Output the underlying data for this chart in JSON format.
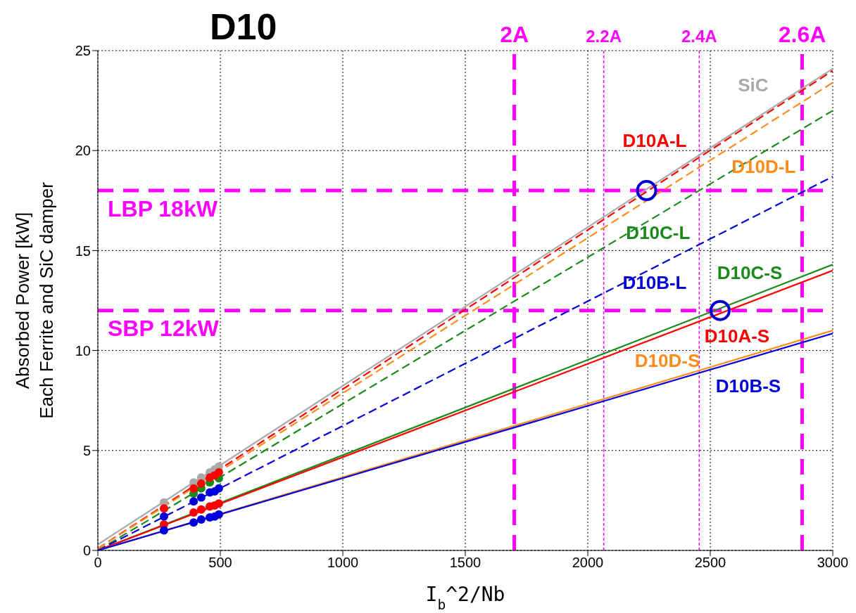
{
  "chart_data": {
    "type": "line",
    "title": "D10",
    "xlabel": "I$_{b}$^2/Nb",
    "ylabel": "Absorbed Power [kW]\nEach Ferrite and SiC damper",
    "xlim": [
      0,
      3000
    ],
    "xticks": [
      0,
      500,
      1000,
      1500,
      2000,
      2500,
      3000
    ],
    "ylim": [
      0,
      25
    ],
    "yticks": [
      0,
      5,
      10,
      15,
      20,
      25
    ],
    "grid": true,
    "series": [
      {
        "name": "SiC",
        "color": "#aaaaaa",
        "line_style": "solid",
        "x": [
          0,
          3000
        ],
        "values": [
          0.3,
          24.1
        ]
      },
      {
        "name": "D10A-L",
        "color": "#ff0000",
        "line_style": "dashed",
        "x": [
          0,
          3000
        ],
        "values": [
          0.1,
          24.0
        ]
      },
      {
        "name": "D10D-L",
        "color": "#ff8c1a",
        "line_style": "dashed",
        "x": [
          0,
          3000
        ],
        "values": [
          0.1,
          23.4
        ]
      },
      {
        "name": "D10C-L",
        "color": "#1a8a1a",
        "line_style": "dashed",
        "x": [
          0,
          3000
        ],
        "values": [
          0.0,
          22.0
        ]
      },
      {
        "name": "D10B-L",
        "color": "#0000dd",
        "line_style": "dashed",
        "x": [
          0,
          3000
        ],
        "values": [
          0.0,
          18.7
        ]
      },
      {
        "name": "D10C-S",
        "color": "#1a8a1a",
        "line_style": "solid",
        "x": [
          0,
          3000
        ],
        "values": [
          0.0,
          14.3
        ]
      },
      {
        "name": "D10A-S",
        "color": "#ff0000",
        "line_style": "solid",
        "x": [
          0,
          3000
        ],
        "values": [
          0.0,
          14.0
        ]
      },
      {
        "name": "D10D-S",
        "color": "#ff8c1a",
        "line_style": "solid",
        "x": [
          0,
          3000
        ],
        "values": [
          0.0,
          11.0
        ]
      },
      {
        "name": "D10B-S",
        "color": "#0000dd",
        "line_style": "solid",
        "x": [
          0,
          3000
        ],
        "values": [
          0.0,
          10.85
        ]
      },
      {
        "type": "scatter",
        "marker": "circle",
        "color": "#aaaaaa",
        "x": [
          270,
          391,
          422,
          457,
          477,
          494
        ],
        "values": [
          2.4,
          3.4,
          3.65,
          3.9,
          4.05,
          4.2
        ]
      },
      {
        "type": "scatter",
        "marker": "circle",
        "color": "#1a8a1a",
        "x": [
          391,
          422,
          457,
          494
        ],
        "values": [
          2.85,
          3.1,
          3.4,
          3.6
        ]
      },
      {
        "type": "scatter",
        "marker": "circle",
        "color": "#ff0000",
        "x": [
          270,
          391,
          422,
          457,
          477,
          494
        ],
        "values": [
          2.1,
          3.1,
          3.35,
          3.65,
          3.75,
          3.9
        ]
      },
      {
        "type": "scatter",
        "marker": "circle",
        "color": "#0000dd",
        "x": [
          270,
          391,
          422,
          457,
          477,
          494
        ],
        "values": [
          1.7,
          2.45,
          2.65,
          2.9,
          2.95,
          3.1
        ]
      },
      {
        "type": "scatter",
        "marker": "circle",
        "color": "#ff0000",
        "x": [
          270,
          391,
          422,
          457,
          477,
          494
        ],
        "values": [
          1.3,
          1.9,
          2.05,
          2.2,
          2.25,
          2.35
        ]
      },
      {
        "type": "scatter",
        "marker": "circle",
        "color": "#0000dd",
        "x": [
          270,
          391,
          422,
          457,
          477,
          494
        ],
        "values": [
          1.0,
          1.4,
          1.55,
          1.65,
          1.7,
          1.8
        ]
      },
      {
        "type": "scatter",
        "marker": "circle",
        "color": "#0000cc",
        "x": [
          2240,
          2540
        ],
        "values": [
          18,
          12
        ]
      }
    ],
    "ref_lines": [
      {
        "axis": "y",
        "value": 18,
        "label": "LBP 18kW",
        "color": "#ff00ff",
        "line_style": "dashed"
      },
      {
        "axis": "y",
        "value": 12,
        "label": "SBP 12kW",
        "color": "#ff00ff",
        "line_style": "dashed"
      },
      {
        "axis": "x",
        "value": 1700,
        "label": "2A",
        "color": "#ff00ff",
        "line_style": "dashed"
      },
      {
        "axis": "x",
        "value": 2065,
        "label": "2.2A",
        "color": "#ff00ff",
        "line_style": "dotted"
      },
      {
        "axis": "x",
        "value": 2455,
        "label": "2.4A",
        "color": "#ff00ff",
        "line_style": "dotted"
      },
      {
        "axis": "x",
        "value": 2875,
        "label": "2.6A",
        "color": "#ff00ff",
        "line_style": "dashed"
      }
    ]
  }
}
